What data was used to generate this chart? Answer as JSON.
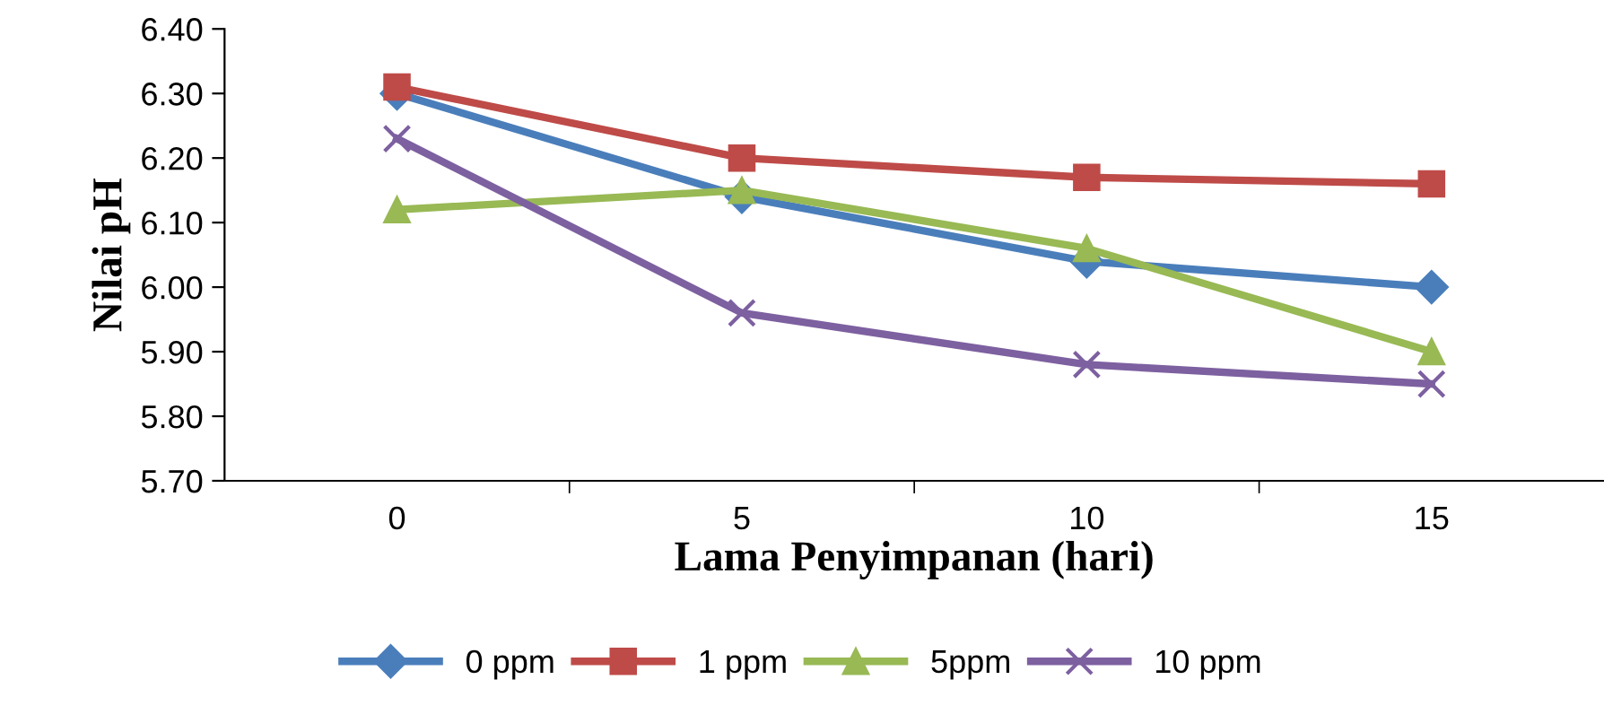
{
  "chart_data": {
    "type": "line",
    "xlabel": "Lama Penyimpanan (hari)",
    "ylabel": "Nilai pH",
    "categories": [
      "0",
      "5",
      "10",
      "15"
    ],
    "series": [
      {
        "name": "0 ppm",
        "color": "#4a7ebb",
        "marker": "diamond",
        "values": [
          6.3,
          6.14,
          6.04,
          6.0
        ]
      },
      {
        "name": "1 ppm",
        "color": "#be4b48",
        "marker": "square",
        "values": [
          6.31,
          6.2,
          6.17,
          6.16
        ]
      },
      {
        "name": "5ppm",
        "color": "#98b954",
        "marker": "triangle",
        "values": [
          6.12,
          6.15,
          6.06,
          5.9
        ]
      },
      {
        "name": "10 ppm",
        "color": "#7d60a0",
        "marker": "cross",
        "values": [
          6.23,
          5.96,
          5.88,
          5.85
        ]
      }
    ],
    "ylim": [
      5.7,
      6.4
    ],
    "yticks": [
      {
        "value": 5.7,
        "label": "5.70"
      },
      {
        "value": 5.8,
        "label": "5.80"
      },
      {
        "value": 5.9,
        "label": "5.90"
      },
      {
        "value": 6.0,
        "label": "6.00"
      },
      {
        "value": 6.1,
        "label": "6.10"
      },
      {
        "value": 6.2,
        "label": "6.20"
      },
      {
        "value": 6.3,
        "label": "6.30"
      },
      {
        "value": 6.4,
        "label": "6.40"
      }
    ],
    "grid": false,
    "legend": "bottom"
  }
}
